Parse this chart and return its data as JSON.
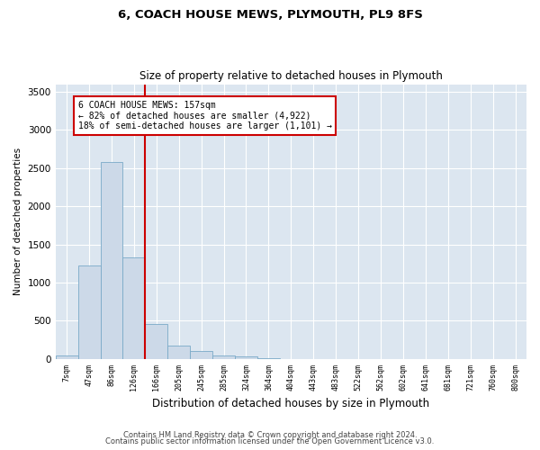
{
  "title1": "6, COACH HOUSE MEWS, PLYMOUTH, PL9 8FS",
  "title2": "Size of property relative to detached houses in Plymouth",
  "xlabel": "Distribution of detached houses by size in Plymouth",
  "ylabel": "Number of detached properties",
  "bin_labels": [
    "7sqm",
    "47sqm",
    "86sqm",
    "126sqm",
    "166sqm",
    "205sqm",
    "245sqm",
    "285sqm",
    "324sqm",
    "364sqm",
    "404sqm",
    "443sqm",
    "483sqm",
    "522sqm",
    "562sqm",
    "602sqm",
    "641sqm",
    "681sqm",
    "721sqm",
    "760sqm",
    "800sqm"
  ],
  "bar_heights": [
    50,
    1220,
    2580,
    1330,
    460,
    170,
    100,
    50,
    30,
    5,
    0,
    0,
    0,
    0,
    0,
    0,
    0,
    0,
    0,
    0,
    0
  ],
  "bar_color": "#ccd9e8",
  "bar_edge_color": "#7aaac8",
  "vline_color": "#cc0000",
  "annotation_line1": "6 COACH HOUSE MEWS: 157sqm",
  "annotation_line2": "← 82% of detached houses are smaller (4,922)",
  "annotation_line3": "18% of semi-detached houses are larger (1,101) →",
  "annotation_box_color": "#ffffff",
  "annotation_box_edge": "#cc0000",
  "ylim": [
    0,
    3600
  ],
  "yticks": [
    0,
    500,
    1000,
    1500,
    2000,
    2500,
    3000,
    3500
  ],
  "footer1": "Contains HM Land Registry data © Crown copyright and database right 2024.",
  "footer2": "Contains public sector information licensed under the Open Government Licence v3.0.",
  "plot_bg_color": "#dce6f0"
}
